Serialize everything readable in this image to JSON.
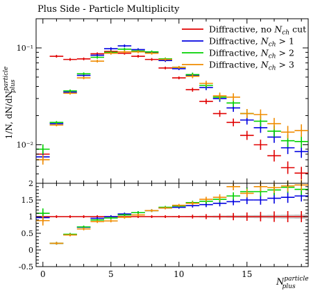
{
  "chart_data": {
    "type": "scatter",
    "title": "Plus Side - Particle Multiplicity",
    "ylabel": "1/N, dN/dN^particle_plus",
    "xlabel": "N^particle_plus",
    "x_ticks": [
      "0",
      "5",
      "10",
      "15"
    ],
    "upper_y_ticks": [
      "10⁻¹",
      "10⁻²"
    ],
    "lower_y_ticks": [
      "2",
      "1.5",
      "1",
      "0.5",
      "0",
      "-0.5"
    ],
    "xlim": [
      -0.5,
      19.5
    ],
    "upper_ylim": [
      0.004,
      0.2
    ],
    "upper_yscale": "log",
    "lower_ylim": [
      -0.5,
      2.0
    ],
    "legend_position": "top-right",
    "x": [
      0,
      1,
      2,
      3,
      4,
      5,
      6,
      7,
      8,
      9,
      10,
      11,
      12,
      13,
      14,
      15,
      16,
      17,
      18,
      19
    ],
    "series": [
      {
        "name": "Diffractive, no N_ch cut",
        "color": "#e00000",
        "values": [
          0.008,
          0.082,
          0.076,
          0.077,
          0.087,
          0.092,
          0.088,
          0.082,
          0.076,
          0.062,
          0.049,
          0.037,
          0.028,
          0.021,
          0.017,
          0.0125,
          0.01,
          0.0077,
          0.0058,
          0.0051
        ],
        "ratio": [
          1.0,
          1.0,
          1.0,
          1.0,
          1.0,
          1.0,
          1.0,
          1.0,
          1.0,
          1.0,
          1.0,
          1.0,
          1.0,
          1.0,
          1.0,
          1.0,
          1.0,
          1.0,
          1.0,
          1.0
        ]
      },
      {
        "name": "Diffractive, N_ch > 1",
        "color": "#0000e0",
        "values": [
          0.0075,
          0.0165,
          0.035,
          0.052,
          0.084,
          0.098,
          0.105,
          0.096,
          0.09,
          0.074,
          0.061,
          0.052,
          0.039,
          0.03,
          0.024,
          0.018,
          0.015,
          0.012,
          0.0093,
          0.0085
        ],
        "ratio": [
          0.97,
          0.2,
          0.46,
          0.68,
          0.95,
          1.0,
          1.08,
          1.12,
          1.18,
          1.26,
          1.28,
          1.33,
          1.36,
          1.4,
          1.45,
          1.5,
          1.5,
          1.55,
          1.58,
          1.62
        ]
      },
      {
        "name": "Diffractive, N_ch > 2",
        "color": "#00d000",
        "values": [
          0.009,
          0.017,
          0.036,
          0.054,
          0.08,
          0.09,
          0.097,
          0.093,
          0.091,
          0.077,
          0.063,
          0.053,
          0.041,
          0.031,
          0.027,
          0.021,
          0.0175,
          0.0138,
          0.011,
          0.0108
        ],
        "ratio": [
          1.1,
          0.2,
          0.47,
          0.69,
          0.9,
          0.96,
          1.05,
          1.12,
          1.18,
          1.28,
          1.32,
          1.42,
          1.46,
          1.52,
          1.62,
          1.75,
          1.75,
          1.8,
          1.88,
          1.82
        ]
      },
      {
        "name": "Diffractive, N_ch > 3",
        "color": "#f08c00",
        "values": [
          0.007,
          0.016,
          0.034,
          0.049,
          0.073,
          0.088,
          0.091,
          0.091,
          0.088,
          0.076,
          0.063,
          0.051,
          0.043,
          0.032,
          0.031,
          0.021,
          0.0205,
          0.0165,
          0.0135,
          0.014
        ],
        "ratio": [
          0.88,
          0.2,
          0.45,
          0.63,
          0.85,
          0.87,
          0.98,
          1.05,
          1.18,
          1.26,
          1.34,
          1.4,
          1.52,
          1.58,
          1.9,
          1.7,
          1.9,
          1.87,
          1.92,
          1.95
        ]
      }
    ]
  }
}
